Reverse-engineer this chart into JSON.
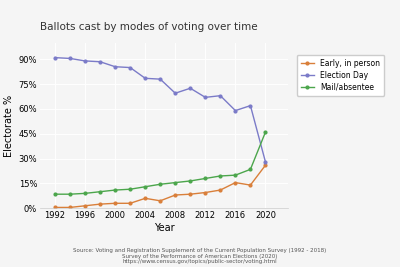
{
  "title": "Ballots cast by modes of voting over time",
  "xlabel": "Year",
  "ylabel": "Electorate %",
  "source_line1": "Source: Voting and Registration Supplement of the Current Population Survey (1992 - 2018)",
  "source_line2": "Survey of the Performance of American Elections (2020)",
  "source_line3": "https://www.census.gov/topics/public-sector/voting.html",
  "years": [
    1992,
    1994,
    1996,
    1998,
    2000,
    2002,
    2004,
    2006,
    2008,
    2010,
    2012,
    2014,
    2016,
    2018,
    2020
  ],
  "early": [
    0.5,
    0.5,
    1.5,
    2.5,
    3.0,
    3.0,
    6.0,
    4.5,
    8.0,
    8.5,
    9.5,
    11.0,
    15.5,
    14.0,
    26.0
  ],
  "election_day": [
    91.0,
    90.5,
    89.0,
    88.5,
    85.5,
    85.0,
    78.5,
    78.0,
    69.5,
    72.5,
    67.0,
    68.0,
    59.0,
    62.0,
    28.0
  ],
  "mail": [
    8.5,
    8.5,
    9.0,
    10.0,
    11.0,
    11.5,
    13.0,
    14.5,
    15.5,
    16.5,
    18.0,
    19.5,
    20.0,
    23.5,
    46.0
  ],
  "early_color": "#d97f3a",
  "election_color": "#7b7bc8",
  "mail_color": "#4ca64c",
  "bg_color": "#f5f5f5",
  "ylim": [
    0,
    100
  ],
  "yticks": [
    0,
    15,
    30,
    45,
    60,
    75,
    90
  ],
  "ytick_labels": [
    "0%",
    "15%",
    "30%",
    "45%",
    "60%",
    "75%",
    "90%"
  ],
  "xticks": [
    1992,
    1996,
    2000,
    2004,
    2008,
    2012,
    2016,
    2020
  ]
}
